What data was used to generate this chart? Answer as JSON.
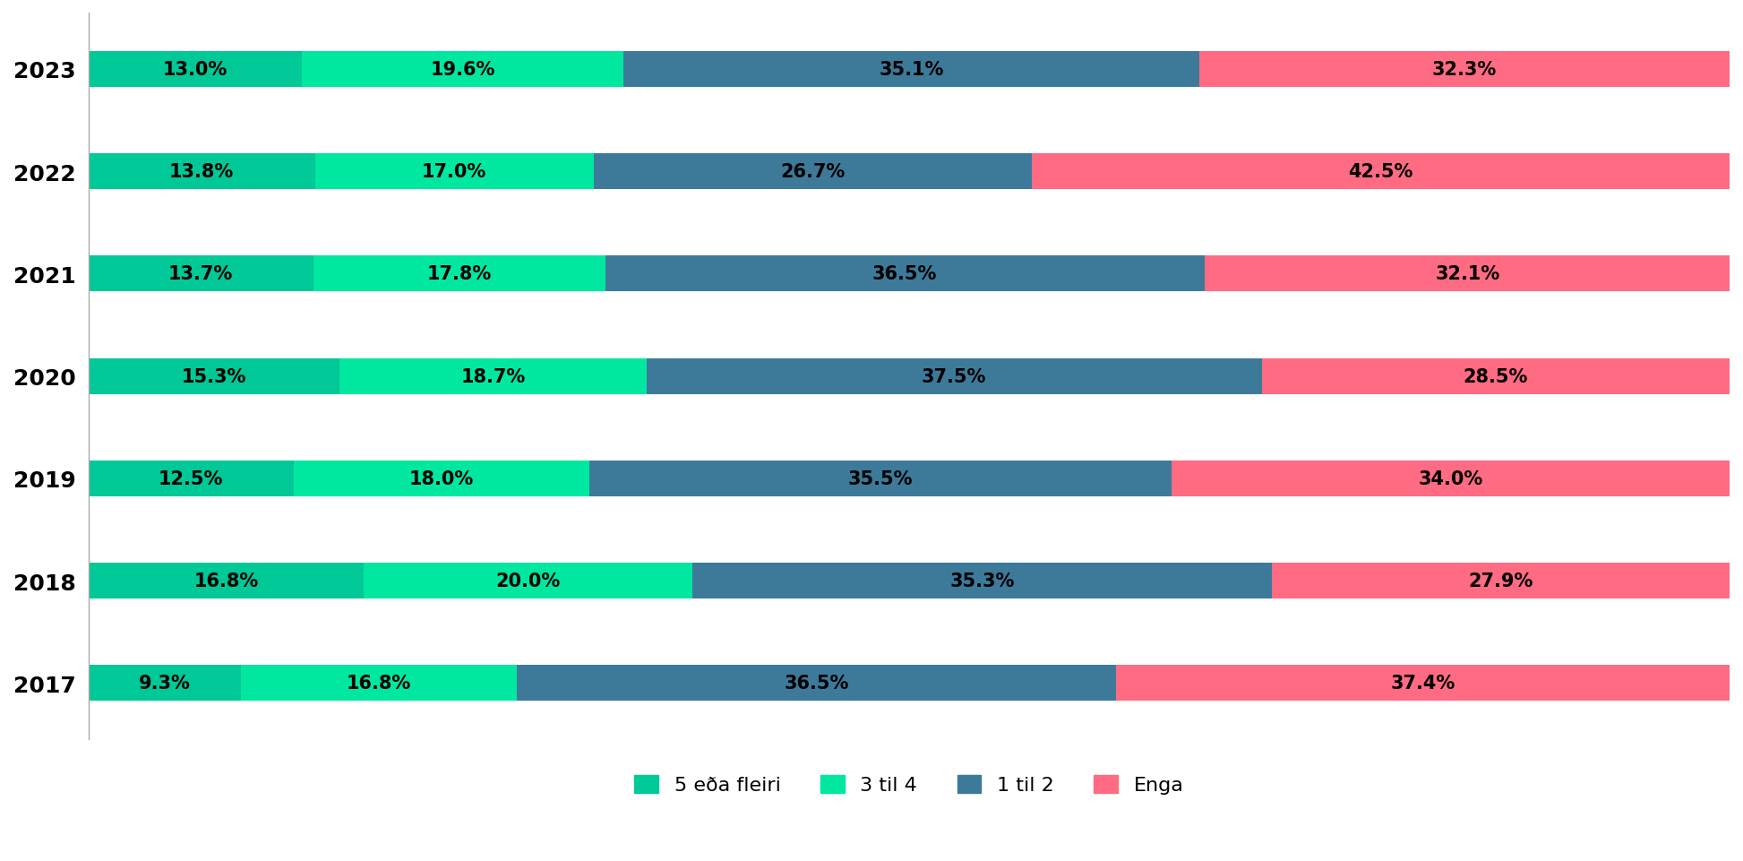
{
  "years": [
    "2023",
    "2022",
    "2021",
    "2020",
    "2019",
    "2018",
    "2017"
  ],
  "series": {
    "5 eða fleiri": [
      13.0,
      13.8,
      13.7,
      15.3,
      12.5,
      16.8,
      9.3
    ],
    "3 til 4": [
      19.6,
      17.0,
      17.8,
      18.7,
      18.0,
      20.0,
      16.8
    ],
    "1 til 2": [
      35.1,
      26.7,
      36.5,
      37.5,
      35.5,
      35.3,
      36.5
    ],
    "Enga": [
      32.3,
      42.5,
      32.1,
      28.5,
      34.0,
      27.9,
      37.4
    ]
  },
  "colors": {
    "5 eða fleiri": "#00C896",
    "3 til 4": "#00E8A0",
    "1 til 2": "#3D7A9A",
    "Enga": "#FF6B82"
  },
  "bar_height": 0.35,
  "background_color": "#FFFFFF",
  "text_color": "#000000",
  "label_fontsize": 15,
  "tick_fontsize": 18,
  "legend_fontsize": 16
}
